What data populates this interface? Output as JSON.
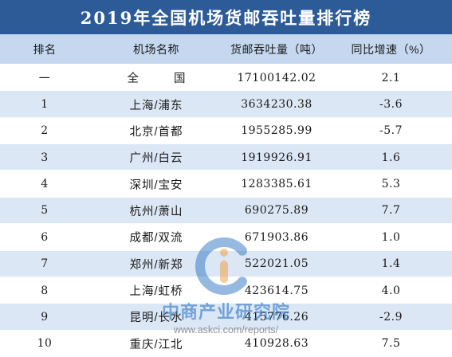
{
  "colors": {
    "title_bg": "#2c5b98",
    "title_text": "#ffffff",
    "header_bg": "#c5d8f0",
    "stripe_bg": "#dce7f5",
    "text": "#1a1a1a",
    "watermark_blue": "#2f75c4",
    "watermark_orange": "#f29a3a",
    "watermark_url": "#7a7a7a"
  },
  "chart_data": {
    "type": "table",
    "title": "2019年全国机场货邮吞吐量排行榜",
    "columns": [
      "排名",
      "机场名称",
      "货邮吞吐量（吨）",
      "同比增速（%）"
    ],
    "rows": [
      [
        "一",
        "全国",
        17100142.02,
        2.1
      ],
      [
        1,
        "上海/浦东",
        3634230.38,
        -3.6
      ],
      [
        2,
        "北京/首都",
        1955285.99,
        -5.7
      ],
      [
        3,
        "广州/白云",
        1919926.91,
        1.6
      ],
      [
        4,
        "深圳/宝安",
        1283385.61,
        5.3
      ],
      [
        5,
        "杭州/萧山",
        690275.89,
        7.7
      ],
      [
        6,
        "成都/双流",
        671903.86,
        1.0
      ],
      [
        7,
        "郑州/新郑",
        522021.05,
        1.4
      ],
      [
        8,
        "上海/虹桥",
        423614.75,
        4.0
      ],
      [
        9,
        "昆明/长水",
        415776.26,
        -2.9
      ],
      [
        10,
        "重庆/江北",
        410928.63,
        7.5
      ]
    ]
  },
  "watermark": {
    "icon": "askci-logo-icon",
    "name": "中商产业研究院",
    "url": "www.askci.com/reports/"
  }
}
